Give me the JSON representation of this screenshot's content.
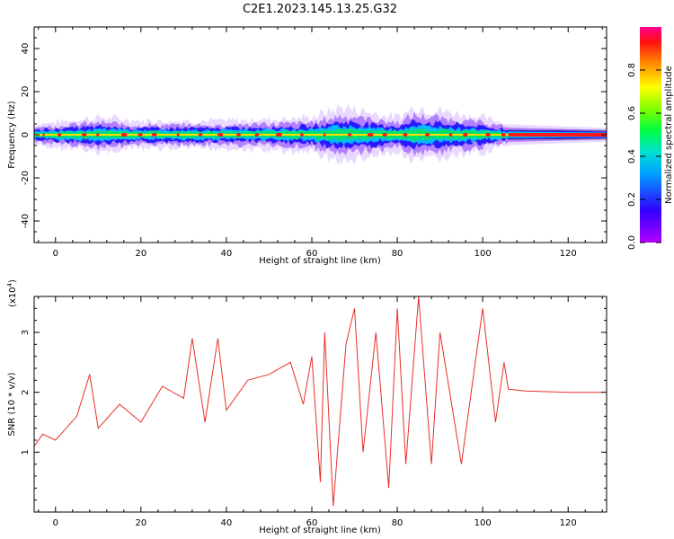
{
  "figure": {
    "title": "C2E1.2023.145.13.25.G32"
  },
  "colorbar": {
    "label": "Normalized spectral amplitude",
    "ticks": [
      "0.0",
      "0.2",
      "0.4",
      "0.6",
      "0.8"
    ],
    "range": [
      0,
      1
    ]
  },
  "chart_data": [
    {
      "type": "heatmap",
      "title": "",
      "xlabel": "Height of straight line (km)",
      "ylabel": "Frequency (Hz)",
      "xlim": [
        -5,
        129
      ],
      "ylim": [
        -50,
        50
      ],
      "xticks": [
        0,
        20,
        40,
        60,
        80,
        100,
        120
      ],
      "yticks": [
        -40,
        -20,
        0,
        20,
        40
      ],
      "band_center_hz": 0,
      "band_halfwidth_hz": 2,
      "noisy_extent_km": [
        -5,
        106
      ],
      "flat_extent_km": [
        106,
        129
      ],
      "band_spread_hz": [
        {
          "x": -5,
          "spread": 3
        },
        {
          "x": 10,
          "spread": 5
        },
        {
          "x": 20,
          "spread": 4
        },
        {
          "x": 40,
          "spread": 4
        },
        {
          "x": 60,
          "spread": 5
        },
        {
          "x": 67,
          "spread": 8
        },
        {
          "x": 80,
          "spread": 5
        },
        {
          "x": 84,
          "spread": 8
        },
        {
          "x": 100,
          "spread": 5
        },
        {
          "x": 106,
          "spread": 3
        },
        {
          "x": 129,
          "spread": 2
        }
      ]
    },
    {
      "type": "line",
      "title": "",
      "xlabel": "Height of straight line (km)",
      "ylabel": "SNR (10 * v/v)",
      "y_multiplier": "(x10",
      "y_multiplier_exp": "4",
      "y_multiplier_close": ")",
      "xlim": [
        -5,
        129
      ],
      "ylim": [
        0,
        3.6
      ],
      "xticks": [
        0,
        20,
        40,
        60,
        80,
        100,
        120
      ],
      "yticks": [
        1,
        2,
        3
      ],
      "color": "#e8302a",
      "series": [
        {
          "x": [
            -5,
            -3,
            0,
            5,
            8,
            10,
            15,
            20,
            25,
            30,
            32,
            35,
            38,
            40,
            45,
            50,
            55,
            58,
            60,
            62,
            63,
            65,
            68,
            70,
            72,
            75,
            78,
            80,
            82,
            85,
            88,
            90,
            95,
            100,
            103,
            105,
            106,
            110,
            120,
            128
          ],
          "y": [
            1.1,
            1.3,
            1.2,
            1.6,
            2.3,
            1.4,
            1.8,
            1.5,
            2.1,
            1.9,
            2.9,
            1.5,
            2.9,
            1.7,
            2.2,
            2.3,
            2.5,
            1.8,
            2.6,
            0.5,
            3.0,
            0.1,
            2.8,
            3.4,
            1.0,
            3.0,
            0.4,
            3.4,
            0.8,
            3.6,
            0.8,
            3.0,
            0.8,
            3.4,
            1.5,
            2.5,
            2.05,
            2.02,
            2.0,
            2.0
          ]
        }
      ]
    }
  ]
}
